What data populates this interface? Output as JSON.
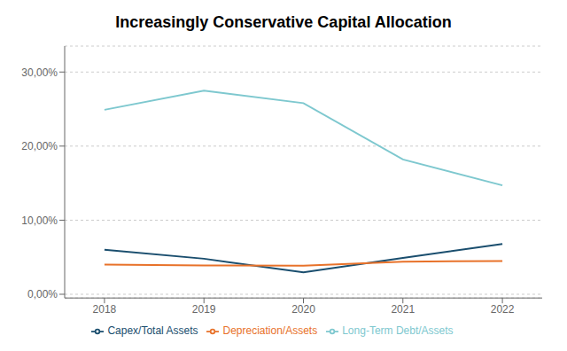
{
  "chart_data": {
    "type": "line",
    "title": "Increasingly Conservative Capital Allocation",
    "x": [
      2018,
      2019,
      2020,
      2021,
      2022
    ],
    "series": [
      {
        "name": "Long-Term Debt/Assets",
        "color": "#7EC8CF",
        "values": [
          0.249,
          0.275,
          0.258,
          0.182,
          0.147
        ]
      },
      {
        "name": "Capex/Total Assets",
        "color": "#1A4E6E",
        "values": [
          0.06,
          0.048,
          0.0295,
          0.049,
          0.068
        ]
      },
      {
        "name": "Depreciation/Assets",
        "color": "#E8722A",
        "values": [
          0.04,
          0.039,
          0.0385,
          0.044,
          0.045
        ]
      }
    ],
    "xlim": [
      2017.6,
      2022.4
    ],
    "xticks": [
      2018,
      2019,
      2020,
      2021,
      2022
    ],
    "ylim": [
      -0.005,
      0.335
    ],
    "yticks": [
      {
        "value": 0.0,
        "label": "0,00%"
      },
      {
        "value": 0.1,
        "label": "10,00%"
      },
      {
        "value": 0.2,
        "label": "20,00%"
      },
      {
        "value": 0.3,
        "label": "30,00%"
      }
    ],
    "grid": true,
    "legend": "bottom"
  }
}
